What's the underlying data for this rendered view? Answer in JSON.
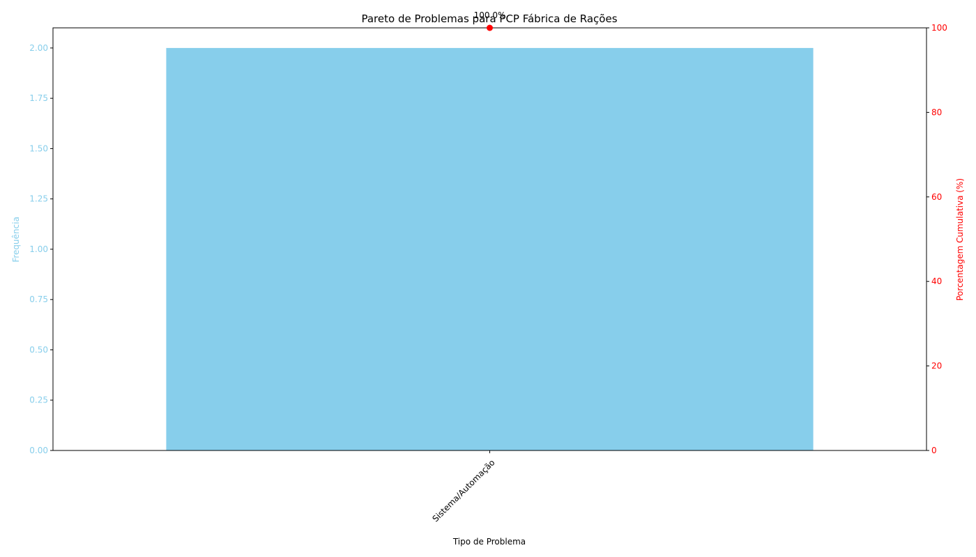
{
  "chart_data": {
    "type": "bar",
    "title": "Pareto de Problemas para PCP Fábrica de Rações",
    "xlabel": "Tipo de Problema",
    "ylabel": "Frequência",
    "y2label": "Porcentagem Cumulativa (%)",
    "categories": [
      "Sistema/Automação"
    ],
    "series": [
      {
        "values": [
          2
        ]
      }
    ],
    "cumulative": {
      "values": [
        100.0
      ],
      "labels": [
        "100.0%"
      ]
    },
    "ylim": [
      0,
      2.1
    ],
    "yticks": [
      "0.00",
      "0.25",
      "0.50",
      "0.75",
      "1.00",
      "1.25",
      "1.50",
      "1.75",
      "2.00"
    ],
    "y2lim": [
      0,
      100
    ],
    "y2ticks": [
      "0",
      "20",
      "40",
      "60",
      "80",
      "100"
    ],
    "grid": false,
    "colors": {
      "bar": "#87ceeb",
      "cumulative": "#ff0000",
      "left_axis": "#87ceeb",
      "right_axis": "#ff0000"
    }
  }
}
